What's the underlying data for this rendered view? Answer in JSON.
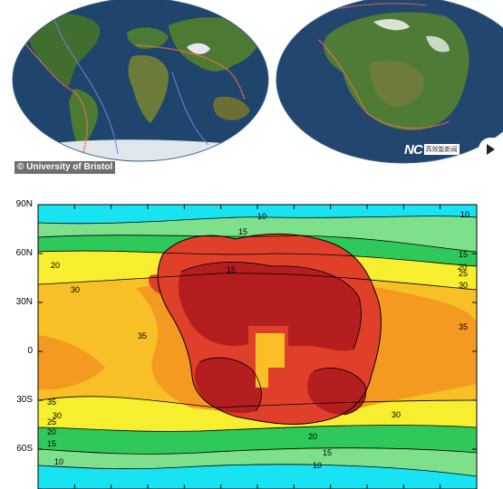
{
  "photo": {
    "credit": "© University of Bristol",
    "logo_mark": "NC",
    "logo_badge": "高效能新闻"
  },
  "colors": {
    "ocean": "#1c3f66",
    "land": "#3c6b2c",
    "boundary": "#ff6a5a",
    "cyan": "#17e3f2",
    "lightgreen": "#7ee08a",
    "green": "#2ec95a",
    "yellow": "#f6ee2e",
    "lightorange": "#f8c026",
    "orange": "#f49a20",
    "red": "#e0402a",
    "darkred": "#b51e1e"
  },
  "map": {
    "lat_ticks": [
      "90N",
      "60N",
      "30N",
      "0",
      "30S",
      "60S"
    ],
    "contour_labels": [
      "10",
      "10",
      "15",
      "15",
      "15",
      "20",
      "20",
      "25",
      "30",
      "30",
      "35",
      "35",
      "35",
      "30",
      "25",
      "20",
      "15",
      "10",
      "10",
      "20",
      "15",
      "30"
    ]
  }
}
